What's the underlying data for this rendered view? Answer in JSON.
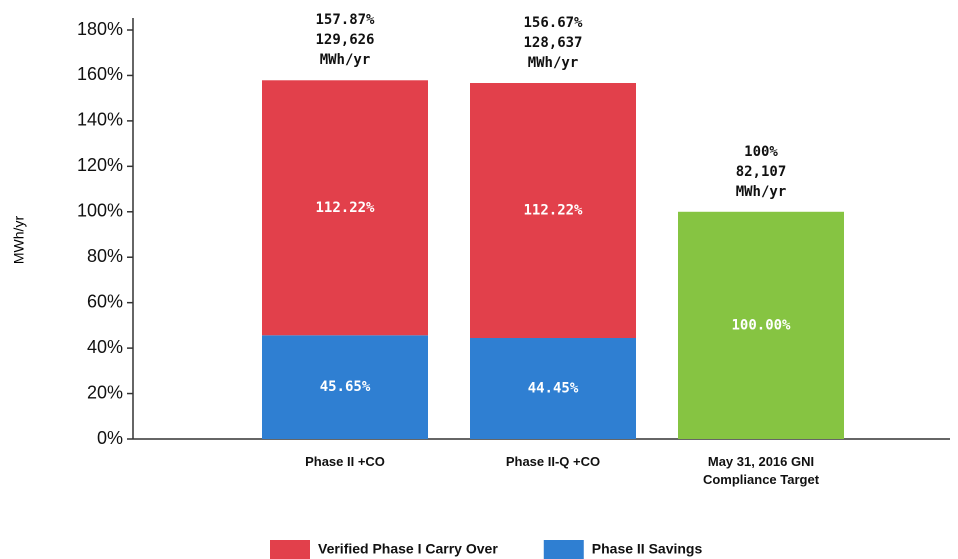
{
  "chart_data": {
    "type": "stacked_bar",
    "y_label": "MWh/yr",
    "categories": [
      "Phase II +CO",
      "Phase II-Q +CO",
      "May 31, 2016 GNI Compliance Target"
    ],
    "series": [
      {
        "name": "Phase II Savings",
        "color": "#2f7fd2",
        "values": [
          45.65,
          44.45,
          null
        ],
        "value_labels": [
          "45.65%",
          "44.45%",
          null
        ]
      },
      {
        "name": "Verified Phase I Carry Over",
        "color": "#e2404b",
        "values": [
          112.22,
          112.22,
          null
        ],
        "value_labels": [
          "112.22%",
          "112.22%",
          null
        ]
      },
      {
        "color": "#86c442",
        "values": [
          null,
          null,
          100
        ],
        "value_labels": [
          null,
          null,
          "100.00%"
        ]
      }
    ],
    "annotations": [
      [
        "157.87%",
        "129,626",
        "MWh/yr"
      ],
      [
        "156.67%",
        "128,637",
        "MWh/yr"
      ],
      [
        "100%",
        "82,107",
        "MWh/yr"
      ]
    ],
    "legend_order": [
      1,
      0
    ],
    "ylim": [
      0,
      180
    ],
    "yticks": [
      {
        "value": 0,
        "label": "0%"
      },
      {
        "value": 20,
        "label": "20%"
      },
      {
        "value": 40,
        "label": "40%"
      },
      {
        "value": 60,
        "label": "60%"
      },
      {
        "value": 80,
        "label": "80%"
      },
      {
        "value": 100,
        "label": "100%"
      },
      {
        "value": 120,
        "label": "120%"
      },
      {
        "value": 140,
        "label": "140%"
      },
      {
        "value": 160,
        "label": "160%"
      },
      {
        "value": 180,
        "label": "180%"
      }
    ],
    "legend": "bottom"
  }
}
